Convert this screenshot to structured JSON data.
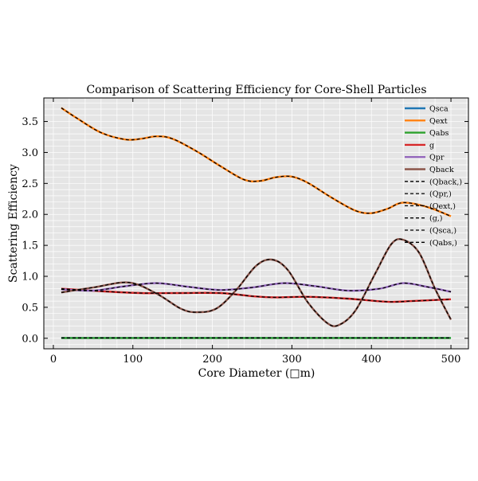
{
  "chart_data": {
    "type": "line",
    "title": "Comparison of Scattering Efficiency for Core-Shell Particles",
    "xlabel": "Core Diameter (□m)",
    "ylabel": "Scattering Efficiency",
    "xlim": [
      -12,
      522
    ],
    "ylim": [
      -0.17,
      3.88
    ],
    "xticks": [
      0,
      100,
      200,
      300,
      400,
      500
    ],
    "yticks": [
      0.0,
      0.5,
      1.0,
      1.5,
      2.0,
      2.5,
      3.0,
      3.5
    ],
    "ytick_labels": [
      "0.0",
      "0.5",
      "1.0",
      "1.5",
      "2.0",
      "2.5",
      "3.0",
      "3.5"
    ],
    "grid": true,
    "legend_position": "top-right",
    "series": [
      {
        "name": "Qsca",
        "color": "#1f77b4",
        "style": "solid",
        "x": [
          10,
          500
        ],
        "y": [
          0.005,
          0.005
        ]
      },
      {
        "name": "Qext",
        "color": "#ff7f0e",
        "style": "solid",
        "x": [
          10,
          30,
          60,
          90,
          110,
          130,
          150,
          180,
          210,
          240,
          260,
          280,
          300,
          320,
          350,
          380,
          400,
          420,
          440,
          470,
          500
        ],
        "y": [
          3.72,
          3.55,
          3.32,
          3.21,
          3.22,
          3.26,
          3.22,
          3.02,
          2.78,
          2.56,
          2.54,
          2.6,
          2.61,
          2.51,
          2.27,
          2.06,
          2.02,
          2.09,
          2.19,
          2.12,
          1.97
        ]
      },
      {
        "name": "Qabs",
        "color": "#2ca02c",
        "style": "solid",
        "x": [
          10,
          500
        ],
        "y": [
          0.005,
          0.005
        ]
      },
      {
        "name": "g",
        "color": "#d62728",
        "style": "solid",
        "x": [
          10,
          60,
          110,
          160,
          210,
          250,
          280,
          320,
          370,
          420,
          450,
          500
        ],
        "y": [
          0.8,
          0.76,
          0.73,
          0.73,
          0.73,
          0.68,
          0.66,
          0.67,
          0.64,
          0.59,
          0.6,
          0.63
        ]
      },
      {
        "name": "Qpr",
        "color": "#9467bd",
        "style": "solid",
        "x": [
          10,
          50,
          90,
          130,
          170,
          210,
          250,
          290,
          330,
          370,
          410,
          440,
          470,
          500
        ],
        "y": [
          0.79,
          0.77,
          0.84,
          0.89,
          0.83,
          0.78,
          0.82,
          0.89,
          0.84,
          0.77,
          0.8,
          0.89,
          0.83,
          0.75
        ]
      },
      {
        "name": "Qback",
        "color": "#8c564b",
        "style": "solid",
        "x": [
          10,
          50,
          95,
          130,
          160,
          180,
          205,
          230,
          255,
          275,
          295,
          320,
          345,
          360,
          380,
          405,
          425,
          440,
          460,
          480,
          500
        ],
        "y": [
          0.74,
          0.82,
          0.9,
          0.72,
          0.48,
          0.42,
          0.48,
          0.78,
          1.17,
          1.27,
          1.1,
          0.58,
          0.24,
          0.22,
          0.45,
          1.05,
          1.52,
          1.59,
          1.38,
          0.8,
          0.3
        ]
      },
      {
        "name": "(Qback,)",
        "color": "#000000",
        "style": "dashed",
        "overlay_of": "Qback"
      },
      {
        "name": "(Qpr,)",
        "color": "#000000",
        "style": "dashed",
        "overlay_of": "Qpr"
      },
      {
        "name": "(Qext,)",
        "color": "#000000",
        "style": "dashed",
        "overlay_of": "Qext"
      },
      {
        "name": "(g,)",
        "color": "#000000",
        "style": "dashed",
        "overlay_of": "g"
      },
      {
        "name": "(Qsca,)",
        "color": "#000000",
        "style": "dashed",
        "overlay_of": "Qsca"
      },
      {
        "name": "(Qabs,)",
        "color": "#000000",
        "style": "dashed",
        "overlay_of": "Qabs"
      }
    ]
  }
}
